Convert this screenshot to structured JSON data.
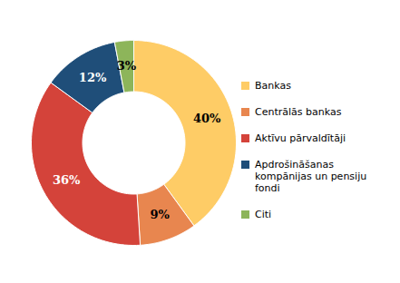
{
  "chart_data": {
    "type": "pie",
    "categories": [
      "Bankas",
      "Centrālās bankas",
      "Aktīvu pārvaldītāji",
      "Apdrošināšanas kompānijas un pensiju fondi",
      "Citi"
    ],
    "values": [
      40,
      9,
      36,
      12,
      3
    ],
    "value_labels": [
      "40%",
      "9%",
      "36%",
      "12%",
      "3%"
    ],
    "colors": [
      "#fecc66",
      "#e8864f",
      "#d4433a",
      "#1f4e79",
      "#8db55a"
    ],
    "data_labels": true,
    "legend": "right"
  }
}
